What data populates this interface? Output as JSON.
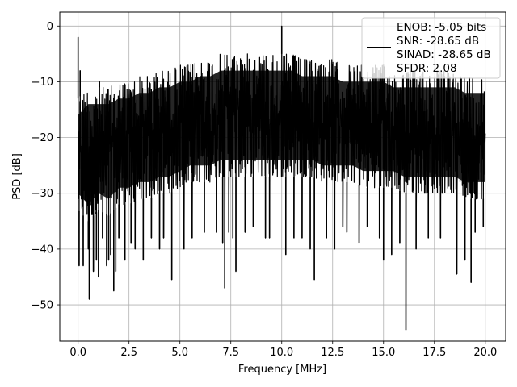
{
  "chart_data": {
    "type": "line",
    "xlabel": "Frequency [MHz]",
    "ylabel": "PSD [dB]",
    "xlim": [
      -0.9,
      21.0
    ],
    "ylim": [
      -56.5,
      2.5
    ],
    "xticks": [
      0.0,
      2.5,
      5.0,
      7.5,
      10.0,
      12.5,
      15.0,
      17.5,
      20.0
    ],
    "xtick_labels": [
      "0.0",
      "2.5",
      "5.0",
      "7.5",
      "10.0",
      "12.5",
      "15.0",
      "17.5",
      "20.0"
    ],
    "yticks": [
      0,
      -10,
      -20,
      -30,
      -40,
      -50
    ],
    "ytick_labels": [
      "0",
      "−10",
      "−20",
      "−30",
      "−40",
      "−50"
    ],
    "grid": true,
    "legend_position": "top-right",
    "legend_lines": [
      "ENOB: -5.05 bits",
      "SNR: -28.65 dB",
      "SINAD: -28.65 dB",
      "SFDR: 2.08"
    ],
    "series": [
      {
        "color": "#000000",
        "envelope": {
          "x": [
            0.0,
            0.5,
            1.0,
            1.5,
            2.0,
            2.5,
            3.0,
            3.5,
            4.0,
            4.5,
            5.0,
            5.5,
            6.0,
            6.5,
            7.0,
            7.5,
            8.0,
            8.5,
            9.0,
            9.5,
            10.0,
            10.5,
            11.0,
            11.5,
            12.0,
            12.5,
            13.0,
            13.5,
            14.0,
            14.5,
            15.0,
            15.5,
            16.0,
            16.5,
            17.0,
            17.5,
            18.0,
            18.5,
            19.0,
            19.5,
            20.0
          ],
          "upper": [
            -13,
            -11,
            -11,
            -11,
            -10,
            -10,
            -9,
            -9,
            -8,
            -8,
            -7,
            -7,
            -6,
            -6,
            -5,
            -5,
            -5,
            -5,
            -5,
            -5,
            -5,
            -5,
            -6,
            -6,
            -6,
            -6,
            -7,
            -7,
            -7,
            -7,
            -7,
            -8,
            -8,
            -8,
            -8,
            -8,
            -8,
            -8,
            -9,
            -9,
            -9
          ],
          "lower": [
            -33,
            -35,
            -33,
            -34,
            -32,
            -32,
            -31,
            -31,
            -30,
            -30,
            -29,
            -28,
            -28,
            -28,
            -27,
            -27,
            -27,
            -27,
            -27,
            -27,
            -27,
            -27,
            -27,
            -27,
            -28,
            -28,
            -28,
            -28,
            -29,
            -29,
            -29,
            -29,
            -30,
            -30,
            -30,
            -30,
            -30,
            -30,
            -31,
            -31,
            -31
          ]
        },
        "spikes": [
          {
            "x": 0.0,
            "y": -2.0
          },
          {
            "x": 0.05,
            "y": -43.0
          },
          {
            "x": 0.1,
            "y": -8.0
          },
          {
            "x": 0.25,
            "y": -43.0
          },
          {
            "x": 0.5,
            "y": -40.0
          },
          {
            "x": 0.55,
            "y": -49.0
          },
          {
            "x": 0.75,
            "y": -44.0
          },
          {
            "x": 0.9,
            "y": -42.0
          },
          {
            "x": 1.0,
            "y": -45.0
          },
          {
            "x": 1.05,
            "y": -10.0
          },
          {
            "x": 1.2,
            "y": -38.0
          },
          {
            "x": 1.4,
            "y": -43.0
          },
          {
            "x": 1.5,
            "y": -42.0
          },
          {
            "x": 1.6,
            "y": -41.0
          },
          {
            "x": 1.75,
            "y": -47.5
          },
          {
            "x": 1.85,
            "y": -44.0
          },
          {
            "x": 2.0,
            "y": -38.0
          },
          {
            "x": 2.3,
            "y": -42.0
          },
          {
            "x": 2.6,
            "y": -39.0
          },
          {
            "x": 2.8,
            "y": -40.0
          },
          {
            "x": 3.2,
            "y": -42.0
          },
          {
            "x": 3.6,
            "y": -38.0
          },
          {
            "x": 4.0,
            "y": -40.0
          },
          {
            "x": 4.2,
            "y": -38.0
          },
          {
            "x": 4.6,
            "y": -45.5
          },
          {
            "x": 5.2,
            "y": -40.0
          },
          {
            "x": 5.6,
            "y": -38.0
          },
          {
            "x": 6.2,
            "y": -37.0
          },
          {
            "x": 6.8,
            "y": -37.0
          },
          {
            "x": 7.1,
            "y": -39.0
          },
          {
            "x": 7.2,
            "y": -47.0
          },
          {
            "x": 7.4,
            "y": -37.0
          },
          {
            "x": 7.6,
            "y": -38.0
          },
          {
            "x": 7.75,
            "y": -44.0
          },
          {
            "x": 8.2,
            "y": -37.0
          },
          {
            "x": 8.6,
            "y": -36.0
          },
          {
            "x": 9.2,
            "y": -38.0
          },
          {
            "x": 9.4,
            "y": -38.0
          },
          {
            "x": 10.0,
            "y": 0.0
          },
          {
            "x": 10.2,
            "y": -41.0
          },
          {
            "x": 10.6,
            "y": -38.0
          },
          {
            "x": 11.0,
            "y": -38.0
          },
          {
            "x": 11.4,
            "y": -40.0
          },
          {
            "x": 11.6,
            "y": -45.5
          },
          {
            "x": 12.2,
            "y": -38.0
          },
          {
            "x": 12.6,
            "y": -40.0
          },
          {
            "x": 13.0,
            "y": -36.0
          },
          {
            "x": 13.2,
            "y": -37.0
          },
          {
            "x": 13.8,
            "y": -39.0
          },
          {
            "x": 14.2,
            "y": -36.0
          },
          {
            "x": 14.8,
            "y": -38.0
          },
          {
            "x": 15.0,
            "y": -42.0
          },
          {
            "x": 15.4,
            "y": -41.0
          },
          {
            "x": 15.8,
            "y": -39.0
          },
          {
            "x": 16.1,
            "y": -54.5
          },
          {
            "x": 16.6,
            "y": -40.0
          },
          {
            "x": 17.2,
            "y": -38.0
          },
          {
            "x": 17.8,
            "y": -38.0
          },
          {
            "x": 18.6,
            "y": -44.5
          },
          {
            "x": 19.0,
            "y": -42.0
          },
          {
            "x": 19.3,
            "y": -46.0
          },
          {
            "x": 19.5,
            "y": -37.0
          },
          {
            "x": 19.9,
            "y": -36.0
          }
        ]
      }
    ]
  }
}
